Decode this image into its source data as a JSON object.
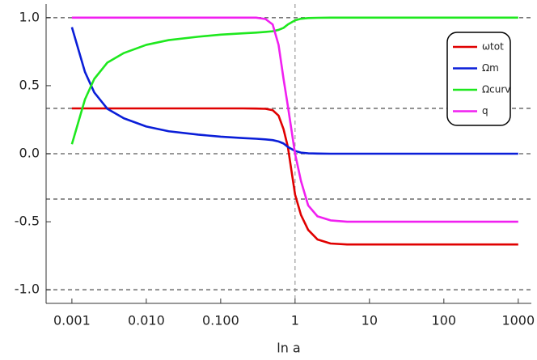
{
  "chart_data": {
    "type": "line",
    "x_label": "ln a",
    "log_x": true,
    "x": [
      0.001,
      0.0015,
      0.002,
      0.003,
      0.005,
      0.01,
      0.02,
      0.05,
      0.1,
      0.2,
      0.3,
      0.4,
      0.5,
      0.6,
      0.7,
      0.8,
      1,
      1.2,
      1.5,
      2,
      3,
      5,
      10,
      100,
      1000
    ],
    "series": [
      {
        "name": "ωtot",
        "color": "#e00000",
        "values": [
          0.333,
          0.333,
          0.333,
          0.333,
          0.333,
          0.333,
          0.333,
          0.333,
          0.333,
          0.333,
          0.332,
          0.33,
          0.32,
          0.28,
          0.18,
          0.05,
          -0.3,
          -0.45,
          -0.56,
          -0.63,
          -0.66,
          -0.667,
          -0.667,
          -0.667,
          -0.667
        ]
      },
      {
        "name": "Ωm",
        "color": "#0a1ed8",
        "values": [
          0.93,
          0.6,
          0.45,
          0.33,
          0.26,
          0.2,
          0.165,
          0.14,
          0.125,
          0.115,
          0.11,
          0.105,
          0.1,
          0.09,
          0.075,
          0.05,
          0.02,
          0.008,
          0.003,
          0.001,
          0,
          0,
          0,
          0,
          0
        ]
      },
      {
        "name": "Ωcurv",
        "color": "#1ee81e",
        "values": [
          0.07,
          0.4,
          0.55,
          0.67,
          0.74,
          0.8,
          0.835,
          0.86,
          0.875,
          0.885,
          0.89,
          0.895,
          0.9,
          0.91,
          0.925,
          0.95,
          0.98,
          0.992,
          0.997,
          0.999,
          1,
          1,
          1,
          1,
          1
        ]
      },
      {
        "name": "q",
        "color": "#f020f0",
        "values": [
          1.0,
          1.0,
          1.0,
          1.0,
          1.0,
          1.0,
          1.0,
          1.0,
          1.0,
          1.0,
          1.0,
          0.99,
          0.95,
          0.8,
          0.55,
          0.35,
          0.0,
          -0.2,
          -0.38,
          -0.46,
          -0.49,
          -0.5,
          -0.5,
          -0.5,
          -0.5
        ]
      }
    ],
    "xlim": [
      0.00045,
      1500
    ],
    "ylim": [
      -1.1,
      1.1
    ],
    "xticks": [
      0.001,
      {
        "value": 0.01,
        "label": "0.010"
      },
      {
        "value": 0.1,
        "label": "0.100"
      },
      1,
      10,
      100,
      1000
    ],
    "yticks": [
      {
        "value": -1,
        "label": "-1.0"
      },
      -0.5,
      {
        "value": 0,
        "label": "0.0"
      },
      0.5,
      {
        "value": 1,
        "label": "1.0"
      }
    ],
    "reference_lines": {
      "y": [
        1,
        0.3333,
        0,
        -0.3333,
        -1
      ],
      "x": [
        1
      ]
    },
    "legend": "top-right"
  }
}
